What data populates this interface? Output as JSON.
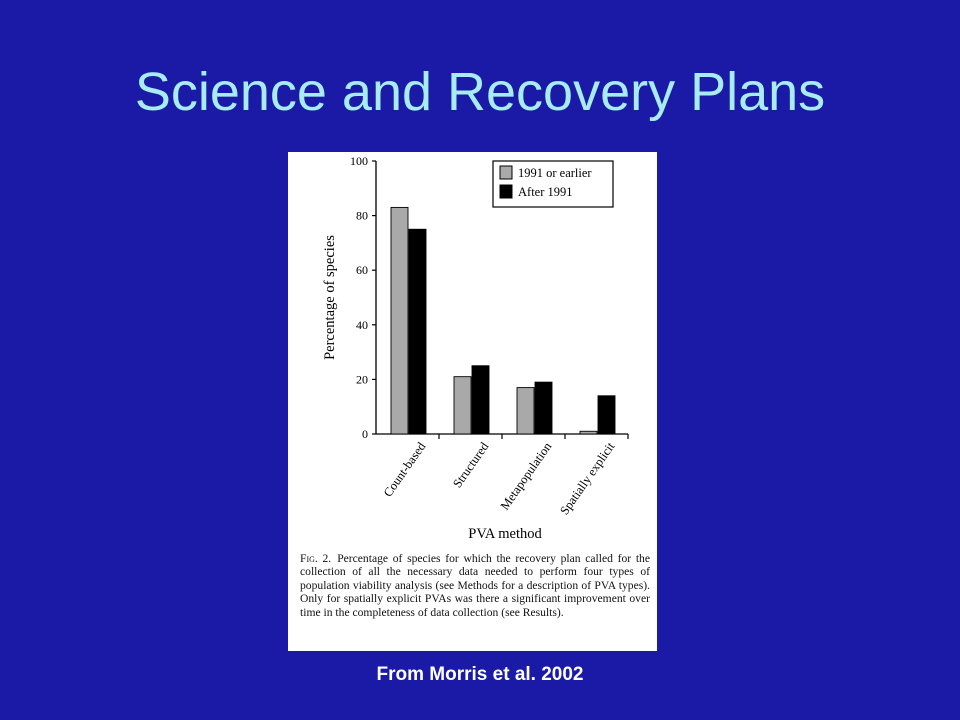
{
  "slide": {
    "title": "Science and Recovery Plans",
    "source": "From Morris et al. 2002"
  },
  "caption": {
    "fig_label": "Fig. 2.",
    "text": "Percentage of species for which the recovery plan called for the collection of all the necessary data needed to perform four types of population viability analysis (see Methods for a description of PVA types). Only for spatially explicit PVAs was there a significant improvement over time in the completeness of data collection (see Results)."
  },
  "chart_data": {
    "type": "bar",
    "categories": [
      "Count-based",
      "Structured",
      "Metapopulation",
      "Spatially explicit"
    ],
    "series": [
      {
        "name": "1991 or earlier",
        "values": [
          83,
          21,
          17,
          1
        ],
        "color": "#a9a9a9"
      },
      {
        "name": "After 1991",
        "values": [
          75,
          25,
          19,
          14
        ],
        "color": "#000000"
      }
    ],
    "xlabel": "PVA method",
    "ylabel": "Percentage of species",
    "ylim": [
      0,
      100
    ],
    "yticks": [
      "0",
      "20",
      "40",
      "60",
      "80",
      "100"
    ],
    "legend_position": "top-right",
    "grid": false
  },
  "colors": {
    "background": "#1a1aa6",
    "title": "#a8ecf3",
    "source": "#ffffff"
  }
}
